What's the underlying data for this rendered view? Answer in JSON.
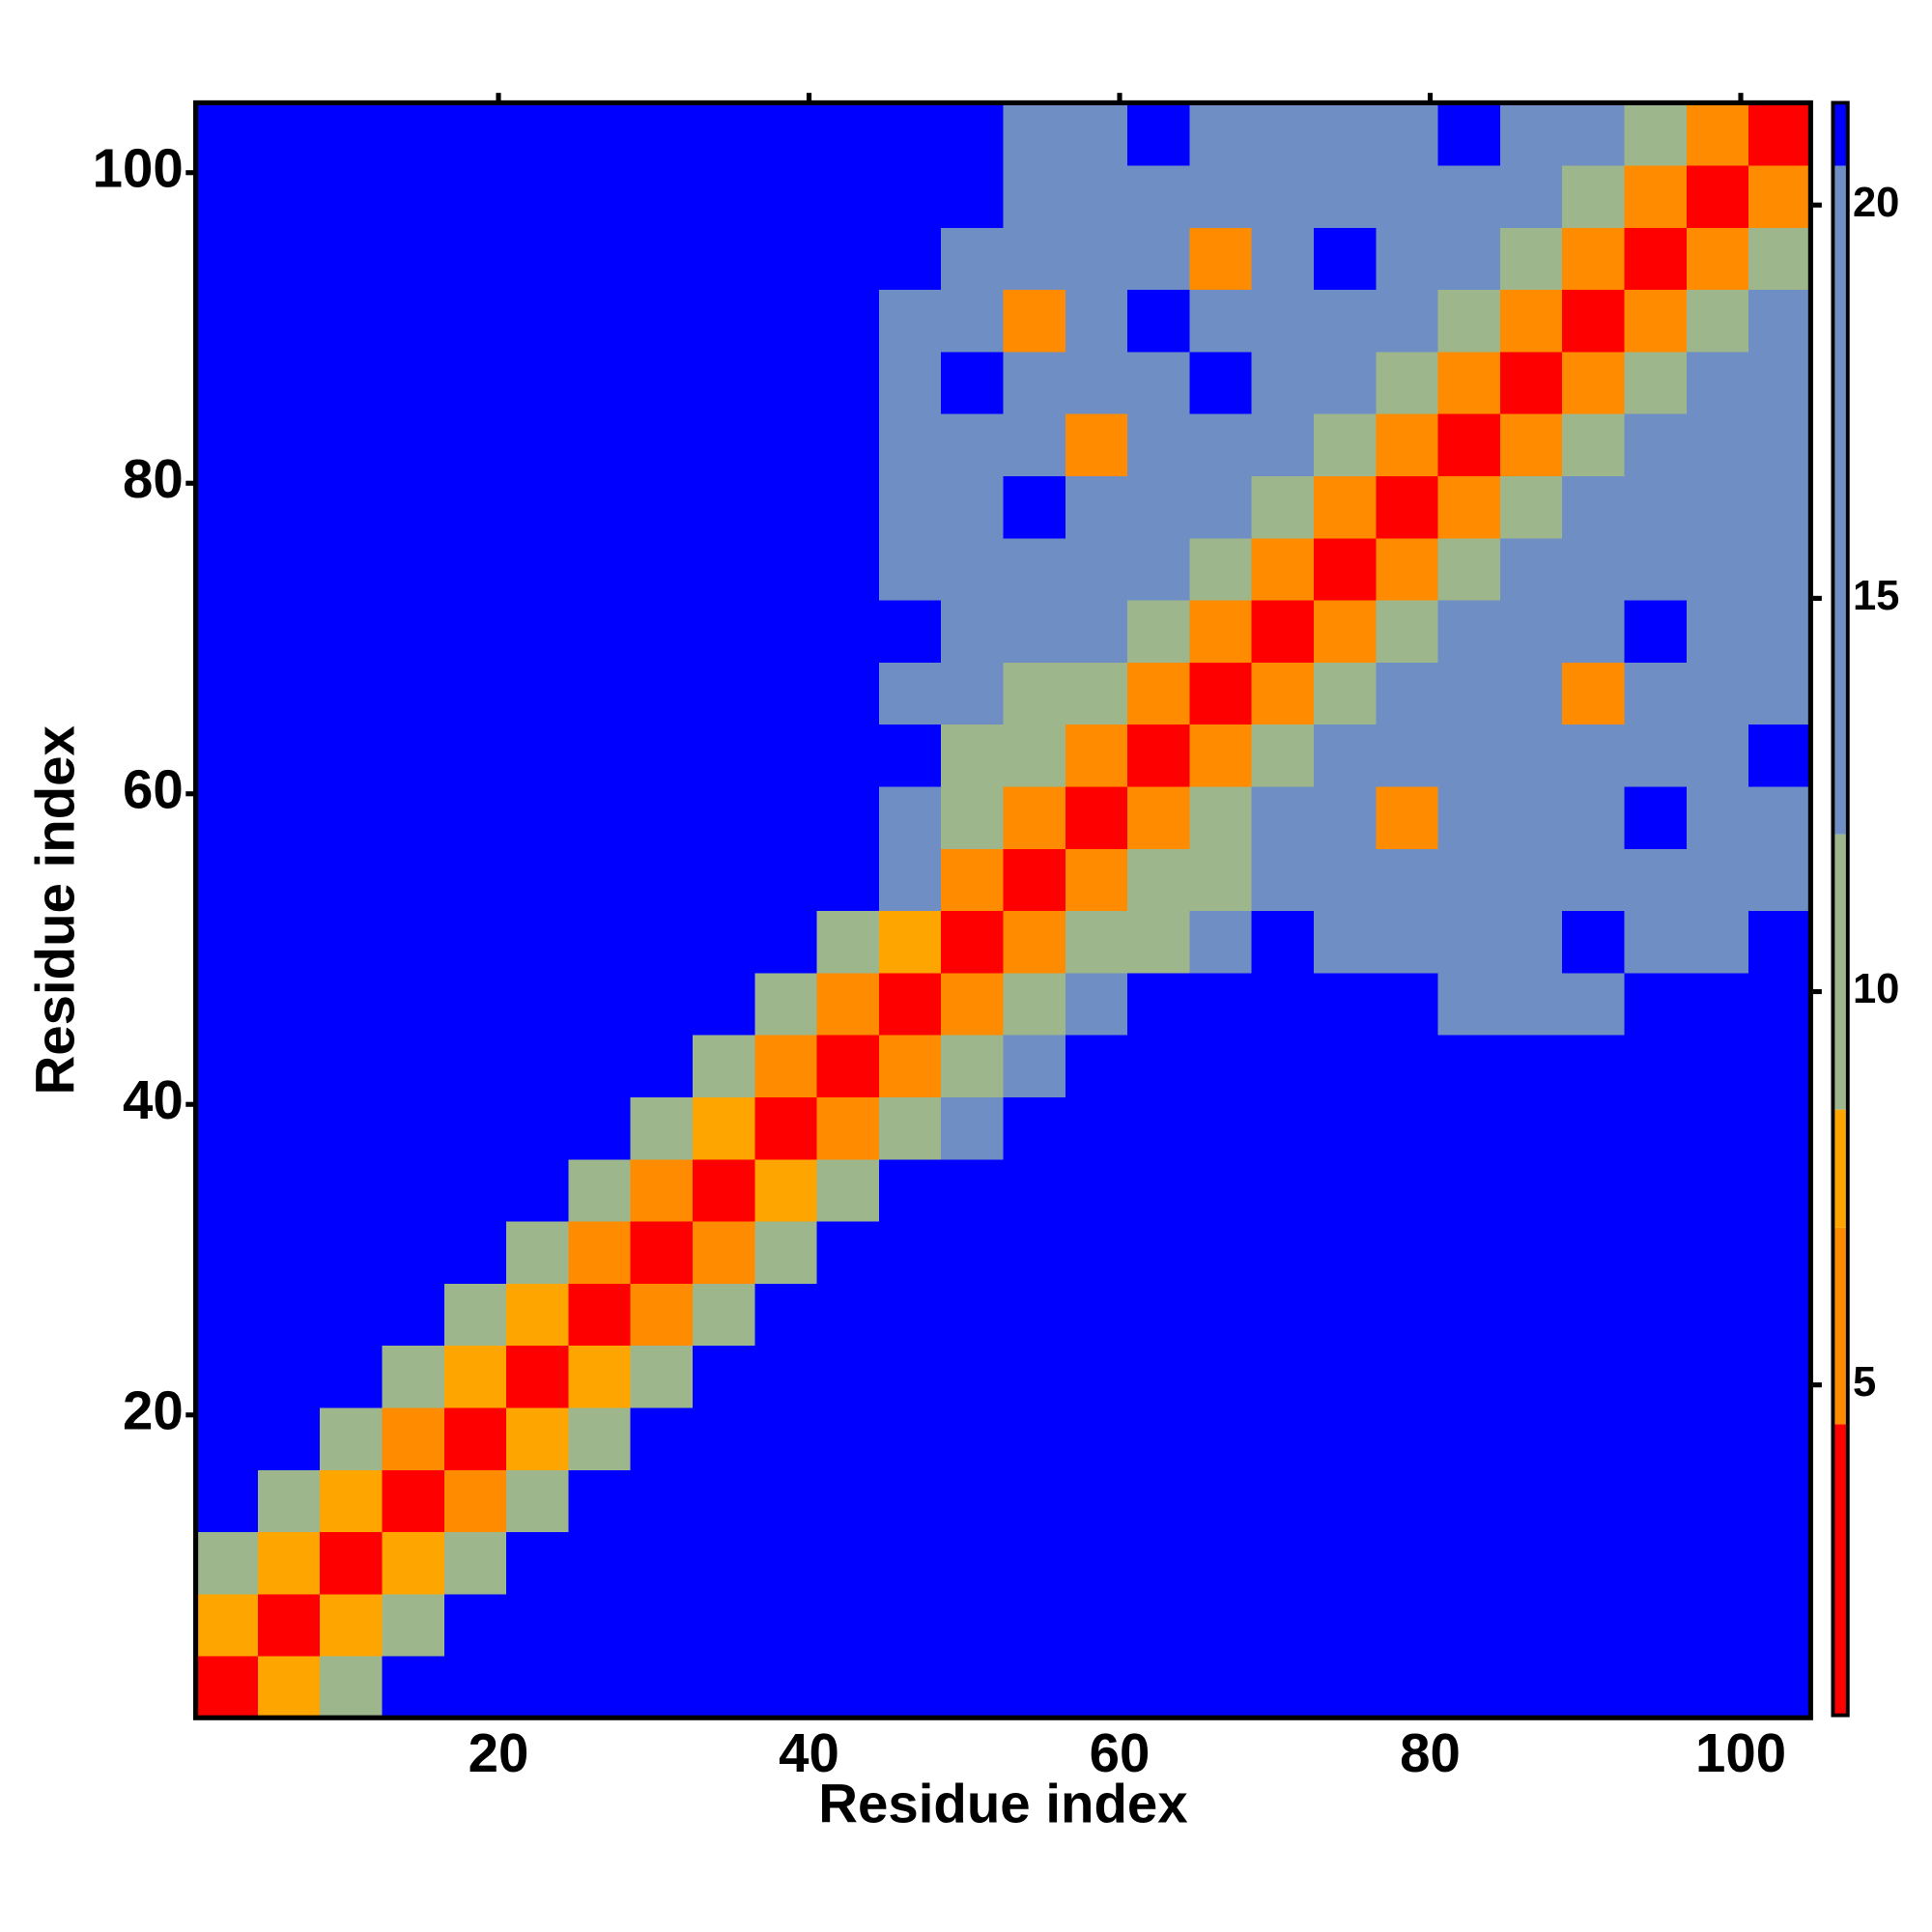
{
  "chart_data": {
    "type": "heatmap",
    "xlabel": "Residue index",
    "ylabel": "Residue index",
    "xlim": [
      0.5,
      104.5
    ],
    "ylim": [
      0.5,
      104.5
    ],
    "xticks": [
      20,
      40,
      60,
      80,
      100
    ],
    "yticks": [
      20,
      40,
      60,
      80,
      100
    ],
    "xbins": [
      0.5,
      4.5,
      8.5,
      12.5,
      16.5,
      20.5,
      24.5,
      28.5,
      32.5,
      36.5,
      40.5,
      44.5,
      48.5,
      52.5,
      56.5,
      60.5,
      64.5,
      68.5,
      72.5,
      76.5,
      80.5,
      84.5,
      88.5,
      92.5,
      96.5,
      100.5,
      104.5
    ],
    "ybins": [
      0.5,
      4.5,
      8.5,
      12.5,
      16.5,
      20.5,
      24.5,
      28.5,
      32.5,
      36.5,
      40.5,
      44.5,
      48.5,
      52.5,
      56.5,
      60.5,
      64.5,
      68.5,
      72.5,
      76.5,
      80.5,
      84.5,
      88.5,
      92.5,
      96.5,
      100.5,
      104.5
    ],
    "zlim": [
      0.8,
      21.3
    ],
    "zticks": [
      5,
      10,
      15,
      20
    ],
    "colorscale": [
      {
        "max": 4.5,
        "color": "#ff0000"
      },
      {
        "max": 7,
        "color": "#ff8c00"
      },
      {
        "max": 8.5,
        "color": "#ffa500"
      },
      {
        "max": 12,
        "color": "#9db68c"
      },
      {
        "max": 20.5,
        "color": "#6f8fc4"
      },
      {
        "max": 30,
        "color": "#0000ff"
      }
    ],
    "z": [
      [
        2,
        8,
        11,
        22,
        22,
        22,
        22,
        22,
        22,
        22,
        22,
        22,
        22,
        22,
        22,
        22,
        22,
        22,
        22,
        22,
        22,
        22,
        22,
        22,
        22,
        22
      ],
      [
        8,
        2,
        8,
        11,
        22,
        22,
        22,
        22,
        22,
        22,
        22,
        22,
        22,
        22,
        22,
        22,
        22,
        22,
        22,
        22,
        22,
        22,
        22,
        22,
        22,
        22
      ],
      [
        11,
        8,
        2,
        8,
        11,
        22,
        22,
        22,
        22,
        22,
        22,
        22,
        22,
        22,
        22,
        22,
        22,
        22,
        22,
        22,
        22,
        22,
        22,
        22,
        22,
        22
      ],
      [
        22,
        11,
        8,
        2,
        7,
        11,
        22,
        22,
        22,
        22,
        22,
        22,
        22,
        22,
        22,
        22,
        22,
        22,
        22,
        22,
        22,
        22,
        22,
        22,
        22,
        22
      ],
      [
        22,
        22,
        11,
        7,
        2,
        8,
        11,
        22,
        22,
        22,
        22,
        22,
        22,
        22,
        22,
        22,
        22,
        22,
        22,
        22,
        22,
        22,
        22,
        22,
        22,
        22
      ],
      [
        22,
        22,
        22,
        11,
        8,
        2,
        8,
        11,
        22,
        22,
        22,
        22,
        22,
        22,
        22,
        22,
        22,
        22,
        22,
        22,
        22,
        22,
        22,
        22,
        22,
        22
      ],
      [
        22,
        22,
        22,
        22,
        11,
        8,
        2,
        7,
        10,
        22,
        22,
        22,
        22,
        22,
        22,
        22,
        22,
        22,
        22,
        22,
        22,
        22,
        22,
        22,
        22,
        22
      ],
      [
        22,
        22,
        22,
        22,
        22,
        11,
        7,
        2,
        7,
        11,
        22,
        22,
        22,
        22,
        22,
        22,
        22,
        22,
        22,
        22,
        22,
        22,
        22,
        22,
        22,
        22
      ],
      [
        22,
        22,
        22,
        22,
        22,
        22,
        10,
        7,
        2,
        8,
        11,
        22,
        22,
        22,
        22,
        22,
        22,
        22,
        22,
        22,
        22,
        22,
        22,
        22,
        22,
        22
      ],
      [
        22,
        22,
        22,
        22,
        22,
        22,
        22,
        11,
        8,
        2,
        7,
        11,
        13,
        22,
        22,
        22,
        22,
        22,
        22,
        22,
        22,
        22,
        22,
        22,
        22,
        22
      ],
      [
        22,
        22,
        22,
        22,
        22,
        22,
        22,
        22,
        11,
        7,
        2,
        7,
        11,
        13,
        22,
        22,
        22,
        22,
        22,
        22,
        22,
        22,
        22,
        22,
        22,
        22
      ],
      [
        22,
        22,
        22,
        22,
        22,
        22,
        22,
        22,
        22,
        11,
        7,
        2,
        7,
        11,
        14,
        22,
        22,
        22,
        22,
        22,
        14,
        16,
        14,
        22,
        22,
        22
      ],
      [
        22,
        22,
        22,
        22,
        22,
        22,
        22,
        22,
        22,
        22,
        12,
        8,
        2,
        7,
        10,
        12,
        14,
        22,
        14,
        15,
        13,
        15,
        22,
        14,
        15,
        22
      ],
      [
        22,
        22,
        22,
        22,
        22,
        22,
        22,
        22,
        22,
        22,
        22,
        13,
        7,
        2,
        7,
        10,
        12,
        15,
        14,
        16,
        15,
        14,
        17,
        15,
        14,
        16
      ],
      [
        22,
        22,
        22,
        22,
        22,
        22,
        22,
        22,
        22,
        22,
        22,
        14,
        10,
        7,
        2,
        6,
        10,
        13,
        15,
        7,
        14,
        16,
        15,
        22,
        15,
        14
      ],
      [
        22,
        22,
        22,
        22,
        22,
        22,
        22,
        22,
        22,
        22,
        22,
        22,
        12,
        10,
        6,
        2,
        7,
        10,
        13,
        15,
        16,
        14,
        15,
        13,
        16,
        22
      ],
      [
        22,
        22,
        22,
        22,
        22,
        22,
        22,
        22,
        22,
        22,
        22,
        15,
        14,
        12,
        10,
        7,
        2,
        7,
        10,
        13,
        15,
        14,
        7,
        15,
        14,
        16
      ],
      [
        22,
        22,
        22,
        22,
        22,
        22,
        22,
        22,
        22,
        22,
        22,
        22,
        15,
        14,
        13,
        10,
        7,
        2,
        7,
        10,
        14,
        15,
        16,
        22,
        15,
        14
      ],
      [
        22,
        22,
        22,
        22,
        22,
        22,
        22,
        22,
        22,
        22,
        22,
        14,
        16,
        15,
        14,
        13,
        10,
        7,
        2,
        6,
        10,
        13,
        15,
        14,
        16,
        15
      ],
      [
        22,
        22,
        22,
        22,
        22,
        22,
        22,
        22,
        22,
        22,
        22,
        15,
        14,
        22,
        15,
        16,
        13,
        10,
        6,
        2,
        7,
        10,
        13,
        15,
        14,
        16
      ],
      [
        22,
        22,
        22,
        22,
        22,
        22,
        22,
        22,
        22,
        22,
        22,
        14,
        15,
        16,
        7,
        14,
        15,
        13,
        10,
        7,
        2,
        7,
        10,
        13,
        15,
        14
      ],
      [
        22,
        22,
        22,
        22,
        22,
        22,
        22,
        22,
        22,
        22,
        22,
        15,
        22,
        14,
        15,
        16,
        22,
        14,
        13,
        10,
        7,
        2,
        6,
        10,
        13,
        15
      ],
      [
        22,
        22,
        22,
        22,
        22,
        22,
        22,
        22,
        22,
        22,
        22,
        14,
        15,
        7,
        14,
        22,
        15,
        16,
        14,
        13,
        10,
        6,
        2,
        7,
        10,
        13
      ],
      [
        22,
        22,
        22,
        22,
        22,
        22,
        22,
        22,
        22,
        22,
        22,
        22,
        15,
        14,
        16,
        15,
        7,
        14,
        22,
        15,
        13,
        10,
        7,
        2,
        7,
        10
      ],
      [
        22,
        22,
        22,
        22,
        22,
        22,
        22,
        22,
        22,
        22,
        22,
        22,
        22,
        15,
        14,
        16,
        15,
        14,
        15,
        16,
        14,
        13,
        10,
        7,
        2,
        7
      ],
      [
        22,
        22,
        22,
        22,
        22,
        22,
        22,
        22,
        22,
        22,
        22,
        22,
        22,
        14,
        16,
        22,
        15,
        14,
        16,
        15,
        22,
        14,
        13,
        10,
        7,
        2
      ]
    ]
  }
}
